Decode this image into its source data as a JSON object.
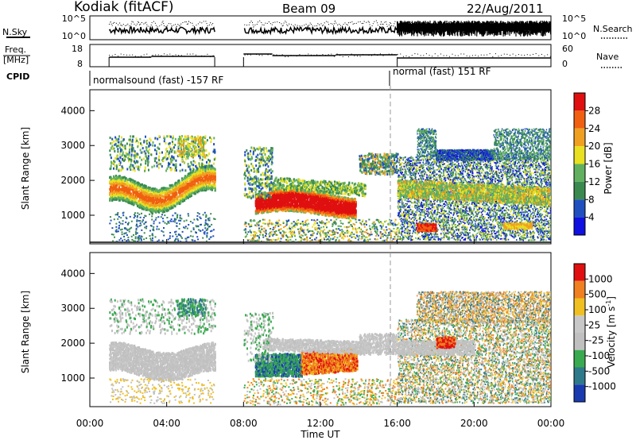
{
  "header": {
    "station": "Kodiak (fitACF)",
    "beam": "Beam 09",
    "date": "22/Aug/2011"
  },
  "strip1": {
    "left_label": "N.Sky",
    "right_label": "N.Search",
    "left_ticks": [
      "10^5",
      "10^0"
    ],
    "right_ticks": [
      "10^5",
      "10^0"
    ]
  },
  "strip2": {
    "left_label_line1": "Freq.",
    "left_label_line2": "[MHz]",
    "right_label": "Nave",
    "left_ticks": [
      "18",
      "8"
    ],
    "right_ticks": [
      "60",
      "0"
    ]
  },
  "cpid": {
    "label": "CPID",
    "segment1": "normalsound (fast) -157 RF",
    "segment2": "normal (fast) 151 RF"
  },
  "power_panel": {
    "ylabel": "Slant Range [km]",
    "yticks": [
      "1000",
      "2000",
      "3000",
      "4000"
    ],
    "colorbar_label": "Power [dB]",
    "colorbar_ticks": [
      "4",
      "8",
      "12",
      "16",
      "20",
      "24",
      "28"
    ]
  },
  "velocity_panel": {
    "ylabel": "Slant Range [km]",
    "yticks": [
      "1000",
      "2000",
      "3000",
      "4000"
    ],
    "colorbar_label": "Velocity [m s",
    "colorbar_label_sup": "-1",
    "colorbar_label_end": "]",
    "colorbar_ticks": [
      "1000",
      "500",
      "100",
      "25",
      "-25",
      "-100",
      "-500",
      "-1000"
    ]
  },
  "xaxis": {
    "label": "Time UT",
    "ticks": [
      "00:00",
      "04:00",
      "08:00",
      "12:00",
      "16:00",
      "20:00",
      "00:00"
    ]
  },
  "chart_data": {
    "type": "heatmap",
    "x_range_hours": [
      0,
      24
    ],
    "y_range_km": [
      180,
      4600
    ],
    "data_gaps_hours": [
      [
        0,
        1
      ],
      [
        6.5,
        8
      ]
    ],
    "mode_change_hours": 16,
    "power_colors": [
      "#1010e0",
      "#2050c0",
      "#3a8a50",
      "#60b060",
      "#e8e020",
      "#f0a020",
      "#f06010",
      "#e01010"
    ],
    "velocity_colors": [
      "#1a3ab0",
      "#2e7a8a",
      "#3aaa50",
      "#c0c0c0",
      "#c8c8c8",
      "#f0c020",
      "#f08020",
      "#e01010"
    ],
    "power_regions": [
      {
        "t0": 1.0,
        "t1": 6.5,
        "r0": 1100,
        "r1": 2300,
        "level": "green-orange"
      },
      {
        "t0": 8.6,
        "t1": 14.0,
        "r0": 1000,
        "r1": 1800,
        "level": "red"
      },
      {
        "t0": 16.0,
        "t1": 24.0,
        "r0": 300,
        "r1": 3500,
        "level": "mixed"
      }
    ],
    "velocity_regions": [
      {
        "t0": 1.0,
        "t1": 6.5,
        "r0": 1000,
        "r1": 2200,
        "level": "grey"
      },
      {
        "t0": 8.6,
        "t1": 11.0,
        "r0": 1100,
        "r1": 1800,
        "level": "blue-green"
      },
      {
        "t0": 11.0,
        "t1": 14.0,
        "r0": 1100,
        "r1": 1800,
        "level": "orange"
      }
    ]
  }
}
